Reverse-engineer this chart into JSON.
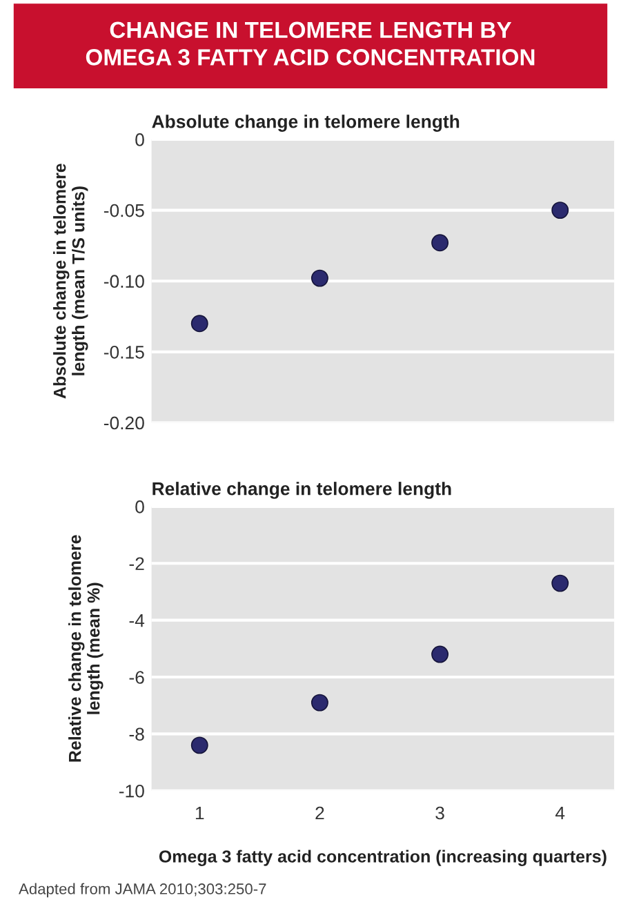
{
  "chart_data": [
    {
      "type": "scatter",
      "title": "CHANGE IN TELOMERE LENGTH BY\nOMEGA 3 FATTY ACID CONCENTRATION",
      "subtitle": "Absolute change in telomere length",
      "ylabel": "Absolute change in telomere\nlength (mean T/S units)",
      "x": [
        1,
        2,
        3,
        4
      ],
      "series": [
        {
          "color": "#2b2a6e",
          "values": [
            -0.13,
            -0.098,
            -0.073,
            -0.05
          ]
        }
      ],
      "xlim": [
        0.6,
        4.45
      ],
      "xticks": [
        1,
        2,
        3,
        4
      ],
      "tick_labels": "y",
      "ylim": [
        -0.2,
        0
      ],
      "yticks": [
        0,
        -0.05,
        {
          "value": -0.1,
          "label": "-0.10"
        },
        -0.15,
        {
          "value": -0.2,
          "label": "-0.20"
        }
      ],
      "grid": "y",
      "marker": "circle"
    },
    {
      "type": "scatter",
      "subtitle": "Relative change in telomere length",
      "ylabel": "Relative change in telomere\nlength (mean %)",
      "xlabel": "Omega 3 fatty acid concentration (increasing quarters)",
      "x": [
        1,
        2,
        3,
        4
      ],
      "series": [
        {
          "color": "#2b2a6e",
          "values": [
            -8.4,
            -6.9,
            -5.2,
            -2.7
          ]
        }
      ],
      "xlim": [
        0.6,
        4.45
      ],
      "xticks": [
        1,
        2,
        3,
        4
      ],
      "ylim": [
        -10,
        0
      ],
      "yticks": [
        0,
        -2,
        -4,
        -6,
        -8,
        -10
      ],
      "grid": "y",
      "marker": "circle",
      "annotations": [
        "Adapted from JAMA 2010;303:250-7"
      ]
    }
  ]
}
